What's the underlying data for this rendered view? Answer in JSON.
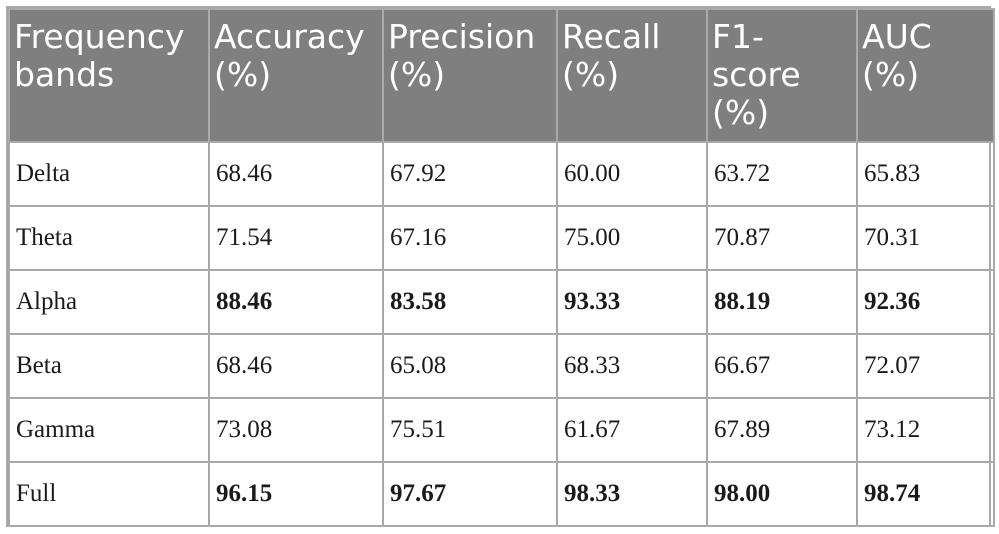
{
  "table": {
    "headers": [
      "Frequency bands",
      "Accuracy (%)",
      "Precision (%)",
      "Recall (%)",
      "F1-score (%)",
      "AUC (%)"
    ],
    "rows": [
      {
        "band": "Delta",
        "accuracy": "68.46",
        "precision": "67.92",
        "recall": "60.00",
        "f1": "63.72",
        "auc": "65.83",
        "bold": false
      },
      {
        "band": "Theta",
        "accuracy": "71.54",
        "precision": "67.16",
        "recall": "75.00",
        "f1": "70.87",
        "auc": "70.31",
        "bold": false
      },
      {
        "band": "Alpha",
        "accuracy": "88.46",
        "precision": "83.58",
        "recall": "93.33",
        "f1": "88.19",
        "auc": "92.36",
        "bold": true
      },
      {
        "band": "Beta",
        "accuracy": "68.46",
        "precision": "65.08",
        "recall": "68.33",
        "f1": "66.67",
        "auc": "72.07",
        "bold": false
      },
      {
        "band": "Gamma",
        "accuracy": "73.08",
        "precision": "75.51",
        "recall": "61.67",
        "f1": "67.89",
        "auc": "73.12",
        "bold": false
      },
      {
        "band": "Full",
        "accuracy": "96.15",
        "precision": "97.67",
        "recall": "98.33",
        "f1": "98.00",
        "auc": "98.74",
        "bold": true
      }
    ]
  },
  "colors": {
    "header_bg": "#7f7f7f",
    "header_text": "#ffffff",
    "border": "#a9a9a9"
  }
}
